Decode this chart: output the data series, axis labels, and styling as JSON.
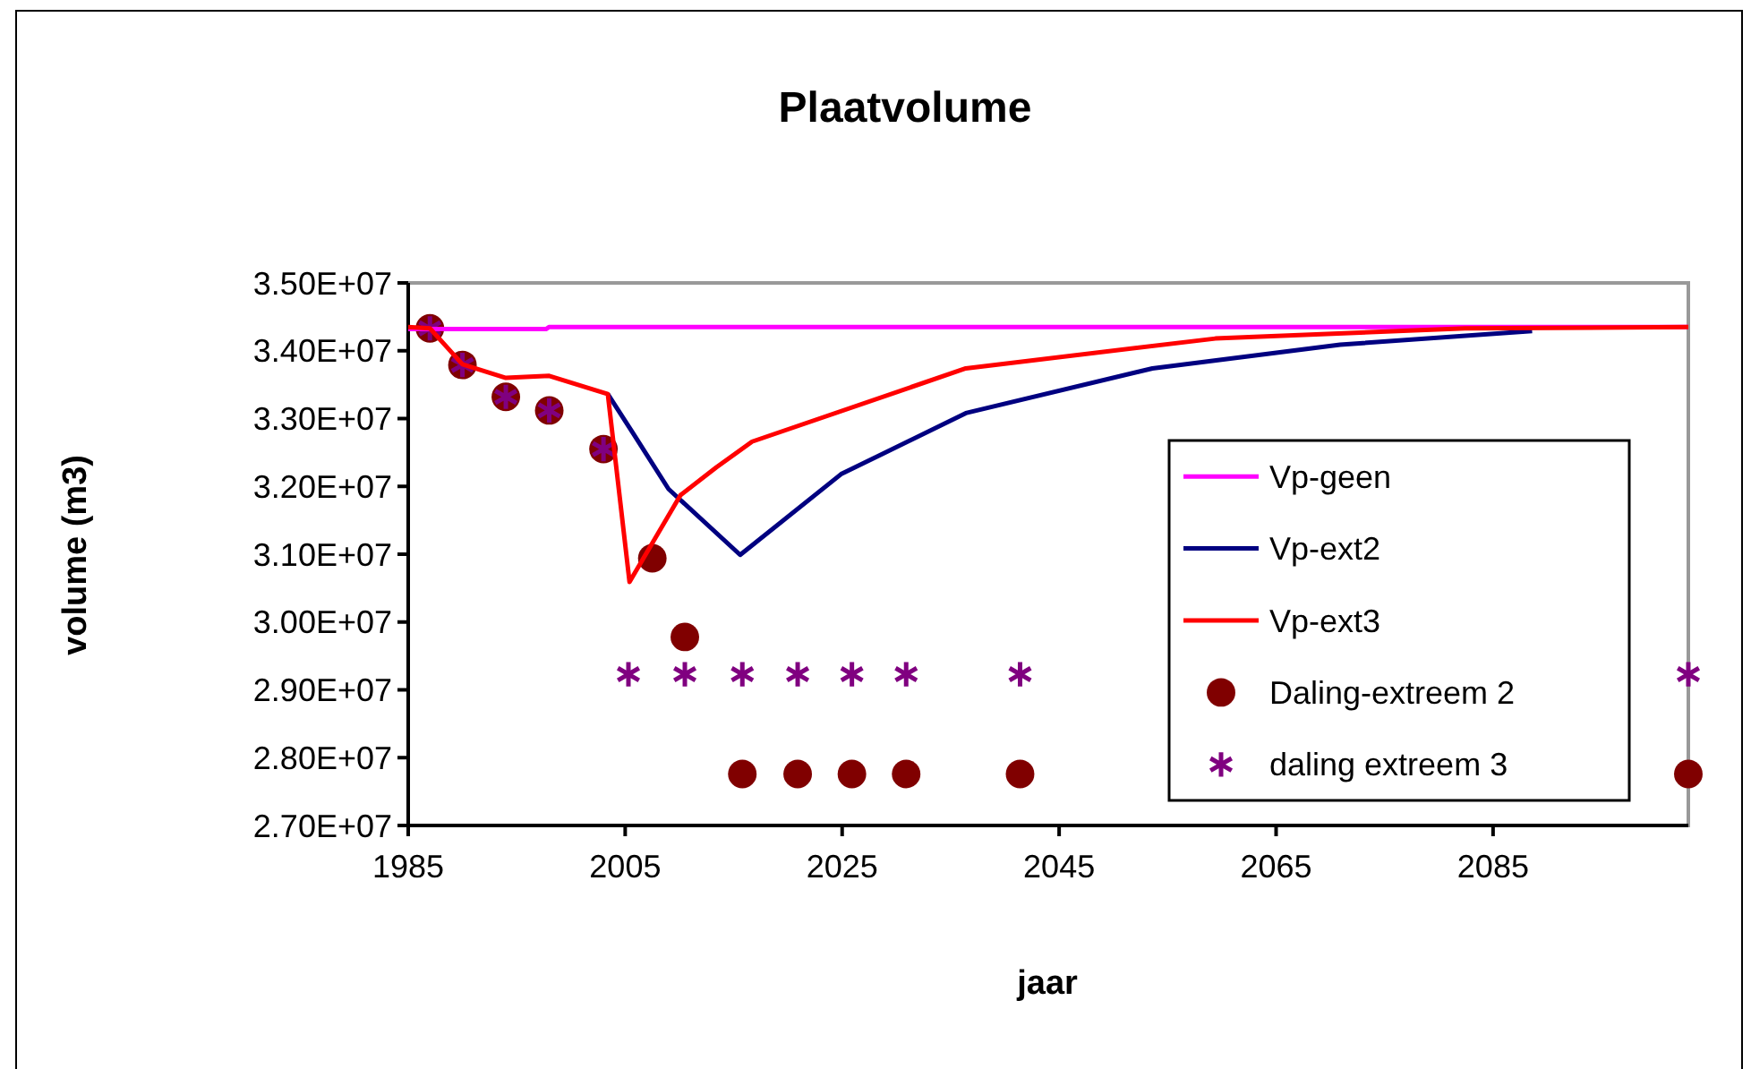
{
  "chart_data": {
    "type": "line",
    "title": "Plaatvolume",
    "xlabel": "jaar",
    "ylabel": "volume (m3)",
    "xlim": [
      1985,
      2103
    ],
    "xticks": [
      1985,
      2005,
      2025,
      2045,
      2065,
      2085
    ],
    "ylim": [
      27000000,
      35000000
    ],
    "yticks": [
      {
        "value": 27000000,
        "label": "2.70E+07"
      },
      {
        "value": 28000000,
        "label": "2.80E+07"
      },
      {
        "value": 29000000,
        "label": "2.90E+07"
      },
      {
        "value": 30000000,
        "label": "3.00E+07"
      },
      {
        "value": 31000000,
        "label": "3.10E+07"
      },
      {
        "value": 32000000,
        "label": "3.20E+07"
      },
      {
        "value": 33000000,
        "label": "3.30E+07"
      },
      {
        "value": 34000000,
        "label": "3.40E+07"
      },
      {
        "value": 35000000,
        "label": "3.50E+07"
      }
    ],
    "grid": false,
    "legend": "bottom right",
    "series": [
      {
        "name": "Vp-geen",
        "marker": "none",
        "color": "#ff00ff",
        "x": [
          1985,
          1997.7,
          1998,
          2103
        ],
        "values": [
          34320000,
          34320000,
          34350000,
          34350000
        ]
      },
      {
        "name": "Vp-ext2",
        "marker": "none",
        "color": "#000080",
        "x": [
          2003.4,
          2005.7,
          2009,
          2015.6,
          2024.9,
          2036.4,
          2053.6,
          2070.9,
          2088.6
        ],
        "values": [
          33360000,
          32790000,
          31960000,
          30990000,
          32180000,
          33080000,
          33740000,
          34090000,
          34290000
        ]
      },
      {
        "name": "Vp-ext3",
        "marker": "none",
        "color": "#ff0000",
        "x": [
          1985,
          1987,
          1990,
          1994,
          1998,
          2003.4,
          2005.4,
          2010.1,
          2013.4,
          2016.7,
          2036.4,
          2059.4,
          2082.4,
          2103
        ],
        "values": [
          34350000,
          34330000,
          33800000,
          33600000,
          33630000,
          33360000,
          30590000,
          31870000,
          32280000,
          32660000,
          33740000,
          34180000,
          34330000,
          34350000
        ]
      },
      {
        "name": "Daling-extreem 2",
        "type": "scatter",
        "marker": "circle",
        "color": "#800000",
        "x": [
          1987,
          1990,
          1994,
          1998,
          2003,
          2007.5,
          2010.5,
          2015.8,
          2020.9,
          2025.9,
          2030.9,
          2041.4,
          2103
        ],
        "values": [
          34330000,
          33790000,
          33320000,
          33120000,
          32550000,
          30940000,
          29780000,
          27760000,
          27760000,
          27760000,
          27760000,
          27760000,
          27760000
        ]
      },
      {
        "name": "daling extreem 3",
        "type": "scatter",
        "marker": "cross",
        "color": "#800080",
        "x": [
          1987,
          1990,
          1994,
          1998,
          2003,
          2005.3,
          2010.5,
          2015.8,
          2020.9,
          2025.9,
          2030.9,
          2041.4,
          2103
        ],
        "values": [
          34330000,
          33790000,
          33320000,
          33120000,
          32550000,
          29230000,
          29230000,
          29230000,
          29230000,
          29230000,
          29230000,
          29230000,
          29230000
        ]
      }
    ]
  }
}
